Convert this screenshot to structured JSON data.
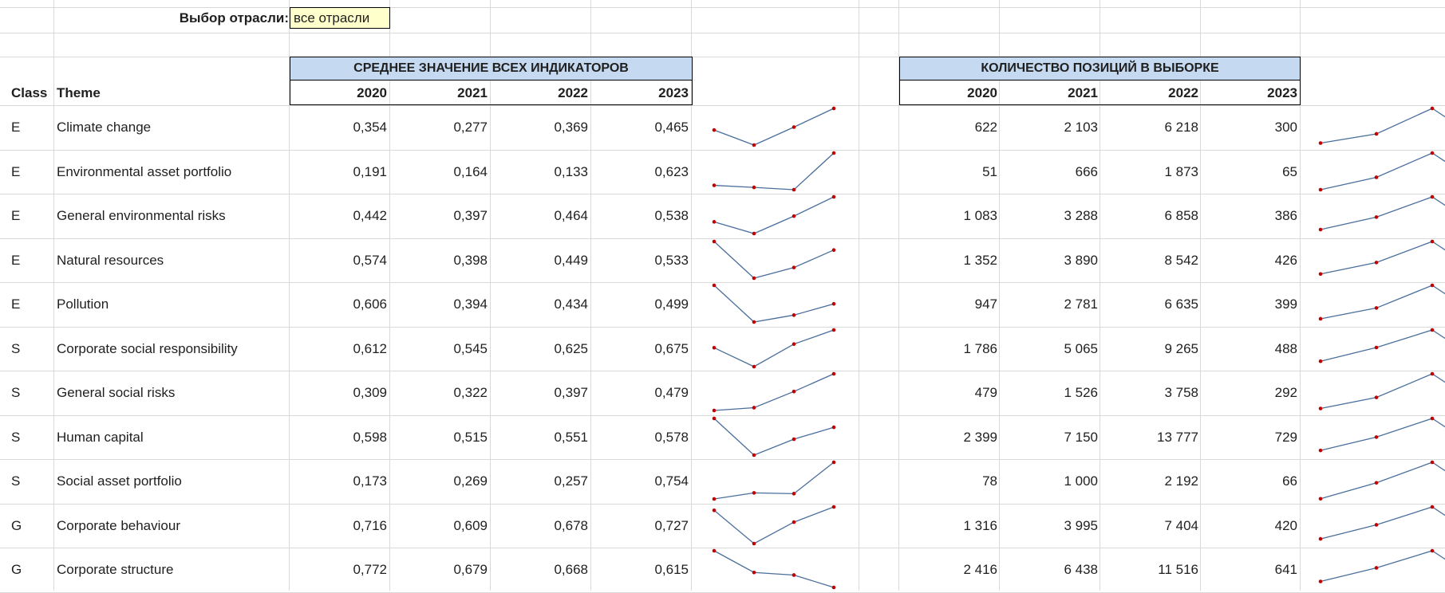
{
  "selector": {
    "label": "Выбор отрасли:",
    "value": "все отрасли"
  },
  "left_block": {
    "title": "СРЕДНЕЕ ЗНАЧЕНИЕ ВСЕХ ИНДИКАТОРОВ",
    "years": [
      "2020",
      "2021",
      "2022",
      "2023"
    ]
  },
  "right_block": {
    "title": "КОЛИЧЕСТВО ПОЗИЦИЙ В ВЫБОРКЕ",
    "years": [
      "2020",
      "2021",
      "2022",
      "2023"
    ]
  },
  "columns": {
    "class": "Class",
    "theme": "Theme"
  },
  "colors": {
    "header_fill": "#c5d9f1",
    "selector_fill": "#ffffcc",
    "spark_line": "#4a6f9c",
    "spark_marker": "#c00000",
    "gridline": "#d9d9d9"
  },
  "rows": [
    {
      "class": "E",
      "theme": "Climate change",
      "avg": [
        "0,354",
        "0,277",
        "0,369",
        "0,465"
      ],
      "cnt": [
        "622",
        "2 103",
        "6 218",
        "300"
      ],
      "avg_num": [
        0.354,
        0.277,
        0.369,
        0.465
      ],
      "cnt_num": [
        622,
        2103,
        6218,
        300
      ]
    },
    {
      "class": "E",
      "theme": "Environmental asset portfolio",
      "avg": [
        "0,191",
        "0,164",
        "0,133",
        "0,623"
      ],
      "cnt": [
        "51",
        "666",
        "1 873",
        "65"
      ],
      "avg_num": [
        0.191,
        0.164,
        0.133,
        0.623
      ],
      "cnt_num": [
        51,
        666,
        1873,
        65
      ]
    },
    {
      "class": "E",
      "theme": "General environmental risks",
      "avg": [
        "0,442",
        "0,397",
        "0,464",
        "0,538"
      ],
      "cnt": [
        "1 083",
        "3 288",
        "6 858",
        "386"
      ],
      "avg_num": [
        0.442,
        0.397,
        0.464,
        0.538
      ],
      "cnt_num": [
        1083,
        3288,
        6858,
        386
      ]
    },
    {
      "class": "E",
      "theme": "Natural resources",
      "avg": [
        "0,574",
        "0,398",
        "0,449",
        "0,533"
      ],
      "cnt": [
        "1 352",
        "3 890",
        "8 542",
        "426"
      ],
      "avg_num": [
        0.574,
        0.398,
        0.449,
        0.533
      ],
      "cnt_num": [
        1352,
        3890,
        8542,
        426
      ]
    },
    {
      "class": "E",
      "theme": "Pollution",
      "avg": [
        "0,606",
        "0,394",
        "0,434",
        "0,499"
      ],
      "cnt": [
        "947",
        "2 781",
        "6 635",
        "399"
      ],
      "avg_num": [
        0.606,
        0.394,
        0.434,
        0.499
      ],
      "cnt_num": [
        947,
        2781,
        6635,
        399
      ]
    },
    {
      "class": "S",
      "theme": "Corporate social responsibility",
      "avg": [
        "0,612",
        "0,545",
        "0,625",
        "0,675"
      ],
      "cnt": [
        "1 786",
        "5 065",
        "9 265",
        "488"
      ],
      "avg_num": [
        0.612,
        0.545,
        0.625,
        0.675
      ],
      "cnt_num": [
        1786,
        5065,
        9265,
        488
      ]
    },
    {
      "class": "S",
      "theme": "General social risks",
      "avg": [
        "0,309",
        "0,322",
        "0,397",
        "0,479"
      ],
      "cnt": [
        "479",
        "1 526",
        "3 758",
        "292"
      ],
      "avg_num": [
        0.309,
        0.322,
        0.397,
        0.479
      ],
      "cnt_num": [
        479,
        1526,
        3758,
        292
      ]
    },
    {
      "class": "S",
      "theme": "Human capital",
      "avg": [
        "0,598",
        "0,515",
        "0,551",
        "0,578"
      ],
      "cnt": [
        "2 399",
        "7 150",
        "13 777",
        "729"
      ],
      "avg_num": [
        0.598,
        0.515,
        0.551,
        0.578
      ],
      "cnt_num": [
        2399,
        7150,
        13777,
        729
      ]
    },
    {
      "class": "S",
      "theme": "Social asset portfolio",
      "avg": [
        "0,173",
        "0,269",
        "0,257",
        "0,754"
      ],
      "cnt": [
        "78",
        "1 000",
        "2 192",
        "66"
      ],
      "avg_num": [
        0.173,
        0.269,
        0.257,
        0.754
      ],
      "cnt_num": [
        78,
        1000,
        2192,
        66
      ]
    },
    {
      "class": "G",
      "theme": "Corporate behaviour",
      "avg": [
        "0,716",
        "0,609",
        "0,678",
        "0,727"
      ],
      "cnt": [
        "1 316",
        "3 995",
        "7 404",
        "420"
      ],
      "avg_num": [
        0.716,
        0.609,
        0.678,
        0.727
      ],
      "cnt_num": [
        1316,
        3995,
        7404,
        420
      ]
    },
    {
      "class": "G",
      "theme": "Corporate structure",
      "avg": [
        "0,772",
        "0,679",
        "0,668",
        "0,615"
      ],
      "cnt": [
        "2 416",
        "6 438",
        "11 516",
        "641"
      ],
      "avg_num": [
        0.772,
        0.679,
        0.668,
        0.615
      ],
      "cnt_num": [
        2416,
        6438,
        11516,
        641
      ]
    }
  ]
}
